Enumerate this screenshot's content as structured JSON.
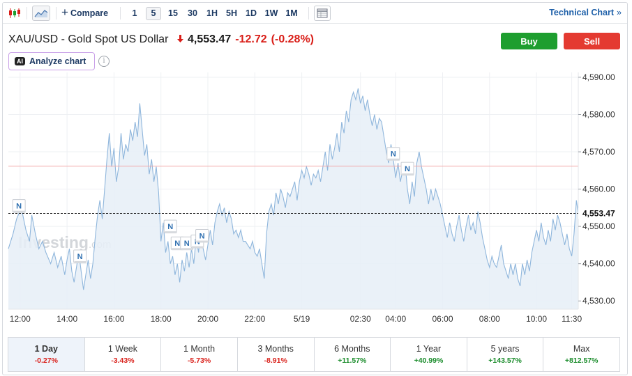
{
  "toolbar": {
    "compare_label": "Compare",
    "intervals": [
      "1",
      "5",
      "15",
      "30",
      "1H",
      "5H",
      "1D",
      "1W",
      "1M"
    ],
    "active_interval": "5",
    "technical_chart_label": "Technical Chart",
    "technical_chart_arrow": "»"
  },
  "header": {
    "title": "XAU/USD - Gold Spot US Dollar",
    "direction_icon": "down-arrow",
    "last_price": "4,553.47",
    "change": "-12.72",
    "change_pct": "(-0.28%)",
    "buy_label": "Buy",
    "sell_label": "Sell",
    "analyze_badge": "AI",
    "analyze_label": "Analyze chart",
    "info_glyph": "i"
  },
  "colors": {
    "accent": "#1d5fa8",
    "line": "#8fb6dc",
    "area": "#e6eef7",
    "buy": "#1e9e2f",
    "sell": "#e43a31",
    "negative": "#d91e18",
    "positive": "#1a8c2b",
    "previous_close_line": "#f2a5a5"
  },
  "chart_data": {
    "type": "area",
    "watermark": "Investing",
    "watermark_suffix": ".com",
    "y_ticks": [
      "4,590.00",
      "4,580.00",
      "4,570.00",
      "4,560.00",
      "4,550.00",
      "4,540.00",
      "4,530.00"
    ],
    "y_tick_values": [
      4590,
      4580,
      4570,
      4560,
      4550,
      4540,
      4530
    ],
    "ylim": [
      4527.8,
      4591.3
    ],
    "x_ticks": [
      "12:00",
      "14:00",
      "16:00",
      "18:00",
      "20:00",
      "22:00",
      "5/19",
      "02:30",
      "04:00",
      "06:00",
      "08:00",
      "10:00",
      "11:30"
    ],
    "x_tick_times": [
      0,
      2,
      4,
      6,
      8,
      10,
      12,
      14.5,
      16,
      18,
      20,
      22,
      23.5
    ],
    "xlim": [
      -0.5,
      23.78
    ],
    "current_price_label": "4,553.47",
    "current_price": 4553.47,
    "previous_close": 4566.19,
    "news_marker_label": "N",
    "news_markers": [
      {
        "t": -0.05,
        "y": 4555.5
      },
      {
        "t": 2.55,
        "y": 4542.0
      },
      {
        "t": 6.4,
        "y": 4550.0
      },
      {
        "t": 6.7,
        "y": 4545.5
      },
      {
        "t": 7.1,
        "y": 4545.5
      },
      {
        "t": 7.55,
        "y": 4546.0
      },
      {
        "t": 7.75,
        "y": 4547.5
      },
      {
        "t": 15.9,
        "y": 4569.5
      },
      {
        "t": 16.5,
        "y": 4565.5
      }
    ],
    "series": [
      {
        "values": [
          [
            -0.5,
            4544
          ],
          [
            -0.3,
            4548
          ],
          [
            -0.15,
            4552
          ],
          [
            0.05,
            4555
          ],
          [
            0.25,
            4549
          ],
          [
            0.4,
            4546
          ],
          [
            0.5,
            4553
          ],
          [
            0.65,
            4548
          ],
          [
            0.8,
            4544
          ],
          [
            0.95,
            4546
          ],
          [
            1.1,
            4543
          ],
          [
            1.3,
            4540
          ],
          [
            1.45,
            4543
          ],
          [
            1.6,
            4539
          ],
          [
            1.75,
            4542
          ],
          [
            1.9,
            4537
          ],
          [
            2.0,
            4541
          ],
          [
            2.1,
            4544
          ],
          [
            2.2,
            4538
          ],
          [
            2.3,
            4535
          ],
          [
            2.4,
            4539
          ],
          [
            2.5,
            4543
          ],
          [
            2.6,
            4538
          ],
          [
            2.7,
            4533
          ],
          [
            2.8,
            4537
          ],
          [
            2.9,
            4541
          ],
          [
            3.0,
            4536
          ],
          [
            3.1,
            4540
          ],
          [
            3.2,
            4547
          ],
          [
            3.3,
            4553
          ],
          [
            3.4,
            4557
          ],
          [
            3.5,
            4552
          ],
          [
            3.6,
            4560
          ],
          [
            3.7,
            4568
          ],
          [
            3.8,
            4575
          ],
          [
            3.9,
            4566
          ],
          [
            4.0,
            4571
          ],
          [
            4.1,
            4562
          ],
          [
            4.2,
            4566
          ],
          [
            4.3,
            4575
          ],
          [
            4.4,
            4568
          ],
          [
            4.5,
            4572
          ],
          [
            4.6,
            4570
          ],
          [
            4.7,
            4576
          ],
          [
            4.8,
            4573
          ],
          [
            4.9,
            4578
          ],
          [
            5.0,
            4574
          ],
          [
            5.1,
            4583
          ],
          [
            5.2,
            4576
          ],
          [
            5.3,
            4569
          ],
          [
            5.4,
            4572
          ],
          [
            5.5,
            4564
          ],
          [
            5.6,
            4568
          ],
          [
            5.7,
            4562
          ],
          [
            5.8,
            4566
          ],
          [
            5.9,
            4559
          ],
          [
            6.0,
            4546
          ],
          [
            6.1,
            4551
          ],
          [
            6.2,
            4543
          ],
          [
            6.3,
            4546
          ],
          [
            6.4,
            4540
          ],
          [
            6.5,
            4542
          ],
          [
            6.6,
            4537
          ],
          [
            6.7,
            4540
          ],
          [
            6.8,
            4535
          ],
          [
            6.9,
            4541
          ],
          [
            7.0,
            4538
          ],
          [
            7.1,
            4543
          ],
          [
            7.2,
            4539
          ],
          [
            7.3,
            4544
          ],
          [
            7.4,
            4540
          ],
          [
            7.5,
            4547
          ],
          [
            7.6,
            4543
          ],
          [
            7.7,
            4549
          ],
          [
            7.8,
            4544
          ],
          [
            7.9,
            4541
          ],
          [
            8.0,
            4545
          ],
          [
            8.1,
            4549
          ],
          [
            8.2,
            4545
          ],
          [
            8.3,
            4551
          ],
          [
            8.4,
            4554
          ],
          [
            8.5,
            4556
          ],
          [
            8.6,
            4553
          ],
          [
            8.7,
            4555
          ],
          [
            8.8,
            4551
          ],
          [
            8.9,
            4554
          ],
          [
            9.0,
            4552
          ],
          [
            9.1,
            4548
          ],
          [
            9.2,
            4549
          ],
          [
            9.3,
            4547
          ],
          [
            9.4,
            4549
          ],
          [
            9.5,
            4546
          ],
          [
            9.6,
            4546
          ],
          [
            9.7,
            4545
          ],
          [
            9.8,
            4544
          ],
          [
            9.9,
            4546
          ],
          [
            10.0,
            4543
          ],
          [
            10.1,
            4542
          ],
          [
            10.2,
            4544
          ],
          [
            10.3,
            4540
          ],
          [
            10.4,
            4536
          ],
          [
            10.5,
            4548
          ],
          [
            10.6,
            4554
          ],
          [
            10.7,
            4556
          ],
          [
            10.8,
            4553
          ],
          [
            10.9,
            4559
          ],
          [
            11.0,
            4556
          ],
          [
            11.1,
            4560
          ],
          [
            11.2,
            4558
          ],
          [
            11.3,
            4555
          ],
          [
            11.4,
            4559
          ],
          [
            11.5,
            4558
          ],
          [
            11.6,
            4560
          ],
          [
            11.7,
            4562
          ],
          [
            11.8,
            4557
          ],
          [
            11.9,
            4562
          ],
          [
            12.0,
            4565
          ],
          [
            12.1,
            4563
          ],
          [
            12.2,
            4566
          ],
          [
            12.3,
            4564
          ],
          [
            12.4,
            4561
          ],
          [
            12.5,
            4564
          ],
          [
            12.6,
            4563
          ],
          [
            12.7,
            4565
          ],
          [
            12.8,
            4562
          ],
          [
            12.9,
            4566
          ],
          [
            13.0,
            4570
          ],
          [
            13.1,
            4565
          ],
          [
            13.2,
            4572
          ],
          [
            13.3,
            4568
          ],
          [
            13.4,
            4571
          ],
          [
            13.5,
            4575
          ],
          [
            13.6,
            4570
          ],
          [
            13.7,
            4578
          ],
          [
            13.8,
            4575
          ],
          [
            13.9,
            4581
          ],
          [
            14.0,
            4578
          ],
          [
            14.1,
            4584
          ],
          [
            14.2,
            4586
          ],
          [
            14.3,
            4584
          ],
          [
            14.4,
            4587
          ],
          [
            14.5,
            4583
          ],
          [
            14.6,
            4585
          ],
          [
            14.7,
            4581
          ],
          [
            14.8,
            4584
          ],
          [
            14.9,
            4580
          ],
          [
            15.0,
            4577
          ],
          [
            15.1,
            4580
          ],
          [
            15.2,
            4576
          ],
          [
            15.3,
            4579
          ],
          [
            15.4,
            4578
          ],
          [
            15.5,
            4574
          ],
          [
            15.6,
            4570
          ],
          [
            15.7,
            4567
          ],
          [
            15.8,
            4572
          ],
          [
            15.9,
            4568
          ],
          [
            16.0,
            4563
          ],
          [
            16.1,
            4567
          ],
          [
            16.2,
            4562
          ],
          [
            16.3,
            4565
          ],
          [
            16.4,
            4567
          ],
          [
            16.5,
            4560
          ],
          [
            16.6,
            4556
          ],
          [
            16.7,
            4562
          ],
          [
            16.8,
            4558
          ],
          [
            16.9,
            4567
          ],
          [
            17.0,
            4570
          ],
          [
            17.1,
            4566
          ],
          [
            17.2,
            4563
          ],
          [
            17.3,
            4560
          ],
          [
            17.4,
            4556
          ],
          [
            17.5,
            4560
          ],
          [
            17.6,
            4557
          ],
          [
            17.7,
            4560
          ],
          [
            17.8,
            4558
          ],
          [
            17.9,
            4556
          ],
          [
            18.0,
            4553
          ],
          [
            18.1,
            4550
          ],
          [
            18.2,
            4547
          ],
          [
            18.3,
            4551
          ],
          [
            18.4,
            4548
          ],
          [
            18.5,
            4546
          ],
          [
            18.6,
            4550
          ],
          [
            18.7,
            4553
          ],
          [
            18.8,
            4549
          ],
          [
            18.9,
            4546
          ],
          [
            19.0,
            4550
          ],
          [
            19.1,
            4553
          ],
          [
            19.2,
            4549
          ],
          [
            19.3,
            4551
          ],
          [
            19.4,
            4548
          ],
          [
            19.5,
            4554
          ],
          [
            19.6,
            4551
          ],
          [
            19.7,
            4547
          ],
          [
            19.8,
            4544
          ],
          [
            19.9,
            4541
          ],
          [
            20.0,
            4539
          ],
          [
            20.1,
            4542
          ],
          [
            20.2,
            4540
          ],
          [
            20.3,
            4539
          ],
          [
            20.4,
            4542
          ],
          [
            20.5,
            4545
          ],
          [
            20.6,
            4540
          ],
          [
            20.7,
            4538
          ],
          [
            20.8,
            4536
          ],
          [
            20.9,
            4540
          ],
          [
            21.0,
            4537
          ],
          [
            21.1,
            4540
          ],
          [
            21.2,
            4536
          ],
          [
            21.3,
            4534
          ],
          [
            21.4,
            4540
          ],
          [
            21.5,
            4537
          ],
          [
            21.6,
            4541
          ],
          [
            21.7,
            4538
          ],
          [
            21.8,
            4543
          ],
          [
            21.9,
            4546
          ],
          [
            22.0,
            4549
          ],
          [
            22.1,
            4546
          ],
          [
            22.2,
            4551
          ],
          [
            22.3,
            4547
          ],
          [
            22.4,
            4545
          ],
          [
            22.5,
            4549
          ],
          [
            22.6,
            4546
          ],
          [
            22.7,
            4552
          ],
          [
            22.8,
            4549
          ],
          [
            22.9,
            4553
          ],
          [
            23.0,
            4551
          ],
          [
            23.1,
            4548
          ],
          [
            23.2,
            4545
          ],
          [
            23.3,
            4548
          ],
          [
            23.4,
            4544
          ],
          [
            23.5,
            4542
          ],
          [
            23.6,
            4548
          ],
          [
            23.7,
            4557
          ],
          [
            23.78,
            4553.47
          ]
        ]
      }
    ]
  },
  "periods": [
    {
      "label": "1 Day",
      "change": "-0.27%",
      "dir": "neg",
      "active": true
    },
    {
      "label": "1 Week",
      "change": "-3.43%",
      "dir": "neg",
      "active": false
    },
    {
      "label": "1 Month",
      "change": "-5.73%",
      "dir": "neg",
      "active": false
    },
    {
      "label": "3 Months",
      "change": "-8.91%",
      "dir": "neg",
      "active": false
    },
    {
      "label": "6 Months",
      "change": "+11.57%",
      "dir": "pos",
      "active": false
    },
    {
      "label": "1 Year",
      "change": "+40.99%",
      "dir": "pos",
      "active": false
    },
    {
      "label": "5 years",
      "change": "+143.57%",
      "dir": "pos",
      "active": false
    },
    {
      "label": "Max",
      "change": "+812.57%",
      "dir": "pos",
      "active": false
    }
  ]
}
